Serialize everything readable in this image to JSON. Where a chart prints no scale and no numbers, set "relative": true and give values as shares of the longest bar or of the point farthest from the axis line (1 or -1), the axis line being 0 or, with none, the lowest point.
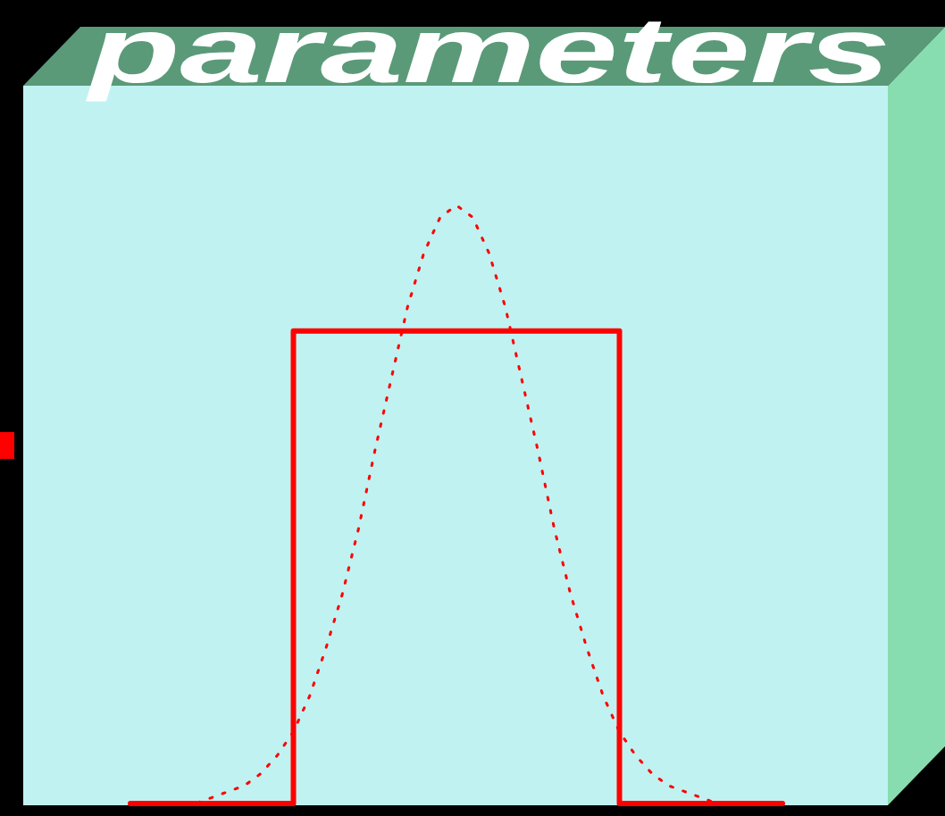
{
  "chart_data": {
    "type": "line",
    "title": "parameters",
    "relative": true,
    "marker": "none",
    "categories": [
      null,
      null,
      null,
      null,
      null,
      null,
      null,
      null,
      null,
      null,
      null,
      null,
      null,
      null,
      null,
      null,
      null,
      null,
      null,
      null,
      null,
      null,
      null,
      null,
      null,
      null,
      null,
      null,
      null,
      null,
      null,
      null,
      null,
      null,
      null,
      null,
      null,
      null,
      null,
      null,
      null
    ],
    "series": [
      {
        "color": "#ff0000",
        "line_style": "dotted",
        "values": [
          0,
          0,
          0,
          0,
          0,
          0.01,
          0.02,
          0.03,
          0.05,
          0.08,
          0.12,
          0.18,
          0.26,
          0.35,
          0.46,
          0.59,
          0.71,
          0.83,
          0.92,
          0.98,
          1,
          0.98,
          0.92,
          0.83,
          0.71,
          0.59,
          0.46,
          0.35,
          0.26,
          0.18,
          0.12,
          0.08,
          0.05,
          0.03,
          0.02,
          0.01,
          0,
          0,
          0,
          0,
          0
        ]
      },
      {
        "type": "step",
        "color": "#ff0000",
        "line_style": "solid",
        "values": [
          0,
          0,
          0,
          0,
          0,
          0,
          0,
          0,
          0,
          0,
          0.79,
          0.79,
          0.79,
          0.79,
          0.79,
          0.79,
          0.79,
          0.79,
          0.79,
          0.79,
          0.79,
          0.79,
          0.79,
          0.79,
          0.79,
          0.79,
          0.79,
          0.79,
          0.79,
          0.79,
          0,
          0,
          0,
          0,
          0,
          0,
          0,
          0,
          0,
          0,
          0
        ]
      }
    ]
  }
}
